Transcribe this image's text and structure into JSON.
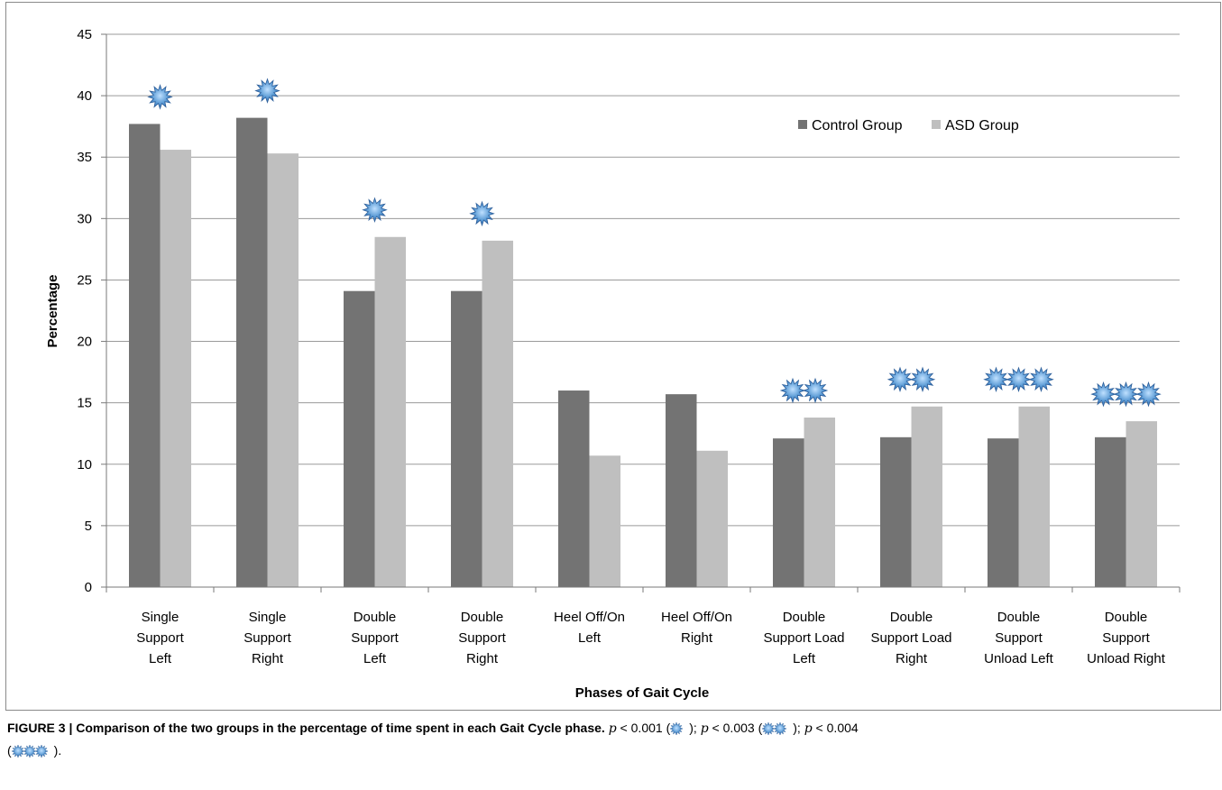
{
  "chart_data": {
    "type": "bar",
    "categories": [
      [
        "Single",
        "Support",
        "Left"
      ],
      [
        "Single",
        "Support",
        "Right"
      ],
      [
        "Double",
        "Support",
        "Left"
      ],
      [
        "Double",
        "Support",
        "Right"
      ],
      [
        "Heel Off/On",
        "Left"
      ],
      [
        "Heel Off/On",
        "Right"
      ],
      [
        "Double",
        "Support Load",
        "Left"
      ],
      [
        "Double",
        "Support Load",
        "Right"
      ],
      [
        "Double",
        "Support",
        "Unload Left"
      ],
      [
        "Double",
        "Support",
        "Unload Right"
      ]
    ],
    "series": [
      {
        "name": "Control Group",
        "color": "#737373",
        "values": [
          37.7,
          38.2,
          24.1,
          24.1,
          16.0,
          15.7,
          12.1,
          12.2,
          12.1,
          12.2
        ]
      },
      {
        "name": "ASD Group",
        "color": "#bfbfbf",
        "values": [
          35.6,
          35.3,
          28.5,
          28.2,
          10.7,
          11.1,
          13.8,
          14.7,
          14.7,
          13.5
        ]
      }
    ],
    "significance_stars": [
      1,
      1,
      1,
      1,
      0,
      0,
      2,
      2,
      3,
      3
    ],
    "xlabel": "Phases of Gait Cycle",
    "ylabel": "Percentage",
    "ylim": [
      0,
      45
    ],
    "yticks": [
      0,
      5,
      10,
      15,
      20,
      25,
      30,
      35,
      40,
      45
    ],
    "grid": true,
    "legend_position": "top-right"
  },
  "caption": {
    "label": "FIGURE 3 | Comparison of the two groups in the percentage of time spent in each Gait Cycle phase.",
    "p": "p",
    "lt": " < ",
    "p1": "0.001",
    "p2": "0.003",
    "p3": "0.004",
    "open": " (",
    "close": ")",
    "sep": "; ",
    "end": "."
  },
  "colors": {
    "star_fill": "#5b9bd5",
    "star_stroke": "#2e5f9a",
    "grid": "#9a9a9a"
  },
  "icons": {
    "significance": "blue-star-burst-icon"
  }
}
